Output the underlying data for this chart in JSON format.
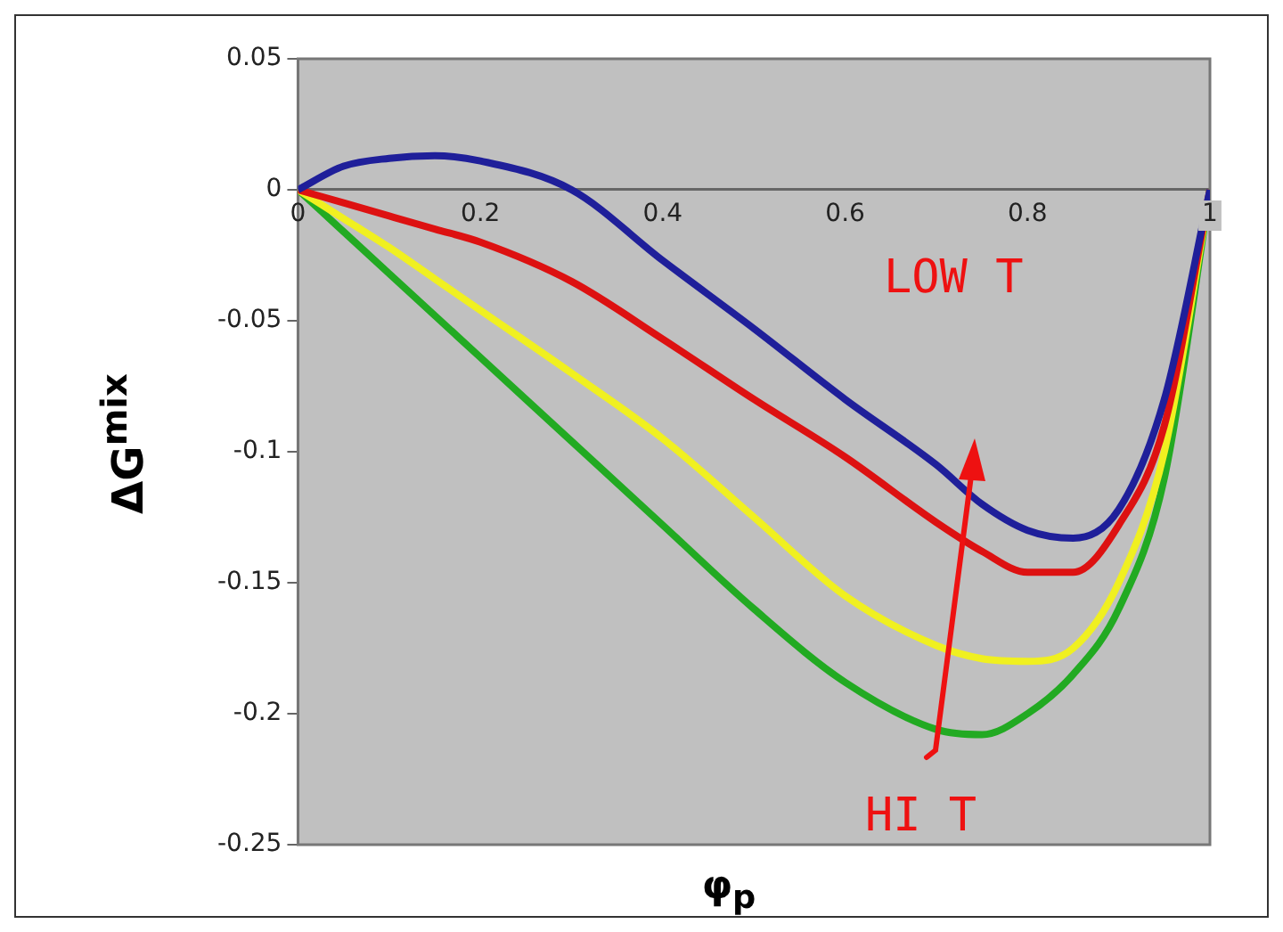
{
  "chart_data": {
    "type": "line",
    "xlabel": "φ$_{p}$",
    "ylabel": "ΔG$^{mix}$",
    "x": [
      0,
      0.05,
      0.1,
      0.15,
      0.2,
      0.3,
      0.4,
      0.5,
      0.6,
      0.7,
      0.75,
      0.8,
      0.85,
      0.9,
      0.95,
      1
    ],
    "series": [
      {
        "color": "#1f1f9a",
        "values": [
          0,
          0.009,
          0.012,
          0.013,
          0.011,
          0,
          -0.027,
          -0.053,
          -0.08,
          -0.105,
          -0.12,
          -0.13,
          -0.133,
          -0.122,
          -0.08,
          0
        ]
      },
      {
        "color": "#dd1111",
        "values": [
          0,
          -0.005,
          -0.01,
          -0.015,
          -0.02,
          -0.035,
          -0.057,
          -0.08,
          -0.102,
          -0.127,
          -0.138,
          -0.146,
          -0.146,
          -0.128,
          -0.09,
          0
        ]
      },
      {
        "color": "#f0f020",
        "values": [
          0,
          -0.011,
          -0.022,
          -0.034,
          -0.046,
          -0.07,
          -0.095,
          -0.125,
          -0.155,
          -0.174,
          -0.179,
          -0.18,
          -0.175,
          -0.15,
          -0.1,
          0
        ]
      },
      {
        "color": "#22aa22",
        "values": [
          0,
          -0.016,
          -0.032,
          -0.048,
          -0.064,
          -0.096,
          -0.128,
          -0.16,
          -0.188,
          -0.206,
          -0.208,
          -0.2,
          -0.185,
          -0.16,
          -0.11,
          0
        ]
      }
    ],
    "xlim": [
      0,
      1
    ],
    "xticks": [
      0,
      0.2,
      0.4,
      0.6,
      0.8,
      1
    ],
    "ylim": [
      -0.25,
      0.05
    ],
    "yticks": [
      -0.25,
      -0.2,
      -0.15,
      -0.1,
      -0.05,
      0,
      0.05
    ],
    "grid": false,
    "legend": false,
    "marker": "none",
    "line_style": "solid",
    "annotations": [
      "LOW T",
      {
        "text": "HI T",
        "x": 0.7,
        "y": -0.21
      }
    ]
  }
}
